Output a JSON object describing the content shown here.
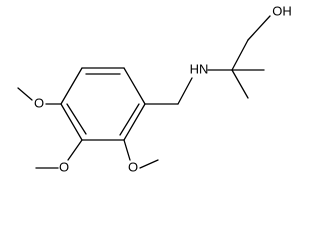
{
  "atoms": [
    {
      "label": "OH"
    },
    {
      "label": "HN"
    },
    {
      "label": "O"
    },
    {
      "label": "O"
    },
    {
      "label": "O"
    }
  ]
}
